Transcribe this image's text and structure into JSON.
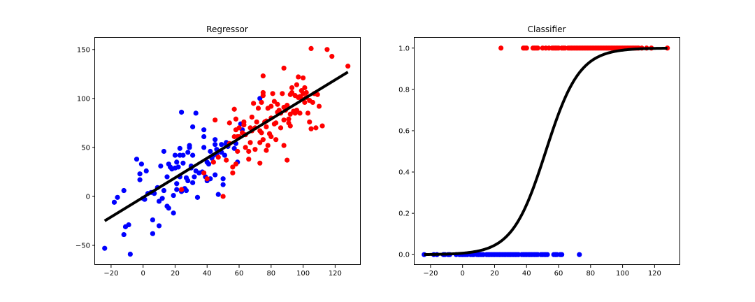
{
  "chart_data": [
    {
      "type": "scatter",
      "title": "Regressor",
      "xlabel": "",
      "ylabel": "",
      "xlim": [
        -30,
        136
      ],
      "ylim": [
        -70,
        162
      ],
      "xticks": [
        -20,
        0,
        20,
        40,
        60,
        80,
        100,
        120
      ],
      "yticks": [
        -50,
        0,
        50,
        100,
        150
      ],
      "grid": false,
      "series": [
        {
          "color": "#0000ff",
          "points": [
            [
              -24,
              -53
            ],
            [
              -18,
              -6
            ],
            [
              -16,
              -1
            ],
            [
              -12,
              6
            ],
            [
              -12,
              -39
            ],
            [
              -11,
              -31
            ],
            [
              -9,
              -29
            ],
            [
              -8,
              -59
            ],
            [
              -4,
              38
            ],
            [
              -2,
              23
            ],
            [
              -2,
              17
            ],
            [
              -1,
              33
            ],
            [
              0,
              -2
            ],
            [
              1,
              -3
            ],
            [
              2,
              26
            ],
            [
              3,
              3
            ],
            [
              5,
              4
            ],
            [
              6,
              -24
            ],
            [
              6,
              -38
            ],
            [
              7,
              3
            ],
            [
              9,
              9
            ],
            [
              10,
              -30
            ],
            [
              10,
              -5
            ],
            [
              11,
              31
            ],
            [
              12,
              -2
            ],
            [
              13,
              6
            ],
            [
              13,
              46
            ],
            [
              15,
              -10
            ],
            [
              15,
              20
            ],
            [
              16,
              -12
            ],
            [
              16,
              33
            ],
            [
              17,
              30
            ],
            [
              18,
              28
            ],
            [
              19,
              -17
            ],
            [
              19,
              1
            ],
            [
              20,
              29
            ],
            [
              20,
              42
            ],
            [
              21,
              35
            ],
            [
              21,
              13
            ],
            [
              21,
              7
            ],
            [
              22,
              30
            ],
            [
              23,
              20
            ],
            [
              23,
              42
            ],
            [
              23,
              49
            ],
            [
              24,
              86
            ],
            [
              24,
              5
            ],
            [
              25,
              34
            ],
            [
              25,
              42
            ],
            [
              26,
              8
            ],
            [
              27,
              19
            ],
            [
              27,
              6
            ],
            [
              28,
              45
            ],
            [
              28,
              16
            ],
            [
              29,
              52
            ],
            [
              29,
              50
            ],
            [
              30,
              31
            ],
            [
              30,
              29
            ],
            [
              31,
              71
            ],
            [
              31,
              42
            ],
            [
              31,
              14
            ],
            [
              32,
              20
            ],
            [
              33,
              85
            ],
            [
              33,
              26
            ],
            [
              34,
              -1
            ],
            [
              35,
              24
            ],
            [
              37,
              25
            ],
            [
              38,
              61
            ],
            [
              38,
              68
            ],
            [
              38,
              50
            ],
            [
              39,
              20
            ],
            [
              40,
              35
            ],
            [
              40,
              16
            ],
            [
              41,
              33
            ],
            [
              42,
              46
            ],
            [
              42,
              18
            ],
            [
              43,
              39
            ],
            [
              44,
              42
            ],
            [
              45,
              58
            ],
            [
              45,
              53
            ],
            [
              45,
              22
            ],
            [
              46,
              48
            ],
            [
              46,
              43
            ],
            [
              47,
              2
            ],
            [
              49,
              45
            ],
            [
              49,
              53
            ],
            [
              50,
              12
            ],
            [
              50,
              18
            ],
            [
              51,
              42
            ],
            [
              52,
              53
            ],
            [
              52,
              55
            ],
            [
              53,
              54
            ],
            [
              53,
              51
            ],
            [
              57,
              49
            ],
            [
              58,
              54
            ],
            [
              59,
              35
            ],
            [
              61,
              74
            ],
            [
              62,
              68
            ],
            [
              73,
              100
            ]
          ]
        },
        {
          "color": "#ff0000",
          "points": [
            [
              24,
              7
            ],
            [
              38,
              24
            ],
            [
              40,
              18
            ],
            [
              44,
              35
            ],
            [
              45,
              78
            ],
            [
              47,
              40
            ],
            [
              50,
              0
            ],
            [
              52,
              37
            ],
            [
              54,
              54
            ],
            [
              54,
              75
            ],
            [
              56,
              30
            ],
            [
              56,
              24
            ],
            [
              57,
              89
            ],
            [
              57,
              61
            ],
            [
              58,
              33
            ],
            [
              58,
              79
            ],
            [
              58,
              68
            ],
            [
              59,
              46
            ],
            [
              59,
              61
            ],
            [
              60,
              61
            ],
            [
              60,
              70
            ],
            [
              62,
              65
            ],
            [
              63,
              73
            ],
            [
              63,
              76
            ],
            [
              64,
              63
            ],
            [
              64,
              50
            ],
            [
              66,
              46
            ],
            [
              66,
              38
            ],
            [
              67,
              55
            ],
            [
              67,
              70
            ],
            [
              68,
              67
            ],
            [
              68,
              81
            ],
            [
              69,
              95
            ],
            [
              70,
              48
            ],
            [
              70,
              70
            ],
            [
              71,
              76
            ],
            [
              72,
              90
            ],
            [
              73,
              67
            ],
            [
              73,
              34
            ],
            [
              73,
              55
            ],
            [
              74,
              96
            ],
            [
              74,
              65
            ],
            [
              75,
              103
            ],
            [
              75,
              106
            ],
            [
              75,
              58
            ],
            [
              75,
              123
            ],
            [
              76,
              76
            ],
            [
              77,
              71
            ],
            [
              77,
              77
            ],
            [
              77,
              47
            ],
            [
              78,
              52
            ],
            [
              78,
              90
            ],
            [
              79,
              64
            ],
            [
              80,
              80
            ],
            [
              80,
              92
            ],
            [
              80,
              61
            ],
            [
              81,
              105
            ],
            [
              82,
              97
            ],
            [
              82,
              74
            ],
            [
              83,
              75
            ],
            [
              83,
              58
            ],
            [
              84,
              94
            ],
            [
              84,
              86
            ],
            [
              85,
              88
            ],
            [
              86,
              70
            ],
            [
              86,
              85
            ],
            [
              87,
              105
            ],
            [
              88,
              91
            ],
            [
              88,
              78
            ],
            [
              88,
              52
            ],
            [
              88,
              131
            ],
            [
              89,
              88
            ],
            [
              90,
              37
            ],
            [
              90,
              93
            ],
            [
              91,
              75
            ],
            [
              91,
              79
            ],
            [
              92,
              84
            ],
            [
              92,
              104
            ],
            [
              92,
              72
            ],
            [
              93,
              106
            ],
            [
              93,
              111
            ],
            [
              94,
              87
            ],
            [
              95,
              85
            ],
            [
              95,
              103
            ],
            [
              96,
              88
            ],
            [
              96,
              114
            ],
            [
              97,
              101
            ],
            [
              97,
              122
            ],
            [
              98,
              85
            ],
            [
              98,
              102
            ],
            [
              99,
              108
            ],
            [
              99,
              100
            ],
            [
              100,
              105
            ],
            [
              100,
              121
            ],
            [
              101,
              96
            ],
            [
              101,
              111
            ],
            [
              102,
              106
            ],
            [
              102,
              101
            ],
            [
              103,
              85
            ],
            [
              104,
              76
            ],
            [
              104,
              98
            ],
            [
              105,
              69
            ],
            [
              105,
              151
            ],
            [
              106,
              96
            ],
            [
              107,
              105
            ],
            [
              108,
              70
            ],
            [
              109,
              104
            ],
            [
              110,
              92
            ],
            [
              112,
              72
            ],
            [
              115,
              150
            ],
            [
              118,
              143
            ],
            [
              128,
              133
            ]
          ]
        }
      ],
      "fit_line": {
        "color": "#000000",
        "x": [
          -24,
          128
        ],
        "y": [
          -25,
          127
        ]
      }
    },
    {
      "type": "scatter",
      "title": "Classifier",
      "xlabel": "",
      "ylabel": "",
      "xlim": [
        -30,
        136
      ],
      "ylim": [
        -0.05,
        1.05
      ],
      "xticks": [
        -20,
        0,
        20,
        40,
        60,
        80,
        100,
        120
      ],
      "yticks": [
        "0.0",
        "0.2",
        "0.4",
        "0.6",
        "0.8",
        "1.0"
      ],
      "grid": false,
      "series": [
        {
          "color": "#0000ff",
          "y": 0,
          "x": [
            -24,
            -18,
            -16,
            -12,
            -11,
            -9,
            -8,
            -4,
            -2,
            -1,
            0,
            1,
            2,
            3,
            5,
            6,
            7,
            9,
            10,
            11,
            12,
            13,
            15,
            16,
            17,
            18,
            19,
            20,
            21,
            22,
            23,
            24,
            25,
            26,
            27,
            28,
            29,
            30,
            31,
            32,
            33,
            34,
            35,
            37,
            38,
            39,
            40,
            41,
            42,
            43,
            44,
            45,
            46,
            47,
            49,
            50,
            51,
            52,
            53,
            57,
            58,
            59,
            61,
            62,
            73
          ]
        },
        {
          "color": "#ff0000",
          "y": 1,
          "x": [
            24,
            38,
            39,
            40,
            44,
            45,
            46,
            47,
            50,
            52,
            54,
            56,
            57,
            58,
            59,
            60,
            62,
            63,
            64,
            66,
            67,
            68,
            69,
            70,
            71,
            72,
            73,
            74,
            75,
            76,
            77,
            78,
            79,
            80,
            81,
            82,
            83,
            84,
            85,
            86,
            87,
            88,
            89,
            90,
            91,
            92,
            93,
            94,
            95,
            96,
            97,
            98,
            99,
            100,
            101,
            102,
            103,
            104,
            105,
            106,
            107,
            108,
            109,
            110,
            112,
            115,
            118,
            128
          ]
        }
      ],
      "sigmoid": {
        "color": "#000000",
        "x_min": -24,
        "x_max": 128,
        "center": 52,
        "scale": 10.5
      }
    }
  ]
}
